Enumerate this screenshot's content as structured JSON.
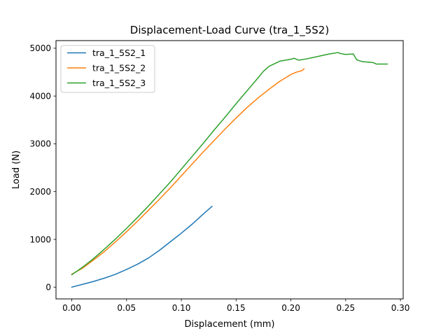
{
  "chart_data": {
    "type": "line",
    "title": "Displacement-Load Curve (tra_1_5S2)",
    "xlabel": "Displacement (mm)",
    "ylabel": "Load (N)",
    "xlim": [
      -0.0144,
      0.3025
    ],
    "ylim": [
      -246,
      5160
    ],
    "xticks": [
      0.0,
      0.05,
      0.1,
      0.15,
      0.2,
      0.25,
      0.3
    ],
    "xtick_labels": [
      "0.00",
      "0.05",
      "0.10",
      "0.15",
      "0.20",
      "0.25",
      "0.30"
    ],
    "yticks": [
      0,
      1000,
      2000,
      3000,
      4000,
      5000
    ],
    "ytick_labels": [
      "0",
      "1000",
      "2000",
      "3000",
      "4000",
      "5000"
    ],
    "grid": false,
    "legend": {
      "placement": "top-left"
    },
    "series": [
      {
        "name": "tra_1_5S2_1",
        "color": "#1f77b4",
        "points": [
          [
            0.0,
            0
          ],
          [
            0.01,
            60
          ],
          [
            0.02,
            120
          ],
          [
            0.03,
            190
          ],
          [
            0.04,
            270
          ],
          [
            0.05,
            370
          ],
          [
            0.06,
            480
          ],
          [
            0.07,
            610
          ],
          [
            0.08,
            770
          ],
          [
            0.09,
            950
          ],
          [
            0.1,
            1130
          ],
          [
            0.11,
            1320
          ],
          [
            0.12,
            1530
          ],
          [
            0.128,
            1690
          ]
        ]
      },
      {
        "name": "tra_1_5S2_2",
        "color": "#ff7f0e",
        "points": [
          [
            0.0,
            270
          ],
          [
            0.01,
            400
          ],
          [
            0.02,
            570
          ],
          [
            0.03,
            750
          ],
          [
            0.04,
            950
          ],
          [
            0.05,
            1160
          ],
          [
            0.06,
            1380
          ],
          [
            0.07,
            1610
          ],
          [
            0.08,
            1840
          ],
          [
            0.09,
            2080
          ],
          [
            0.1,
            2330
          ],
          [
            0.11,
            2580
          ],
          [
            0.12,
            2830
          ],
          [
            0.13,
            3070
          ],
          [
            0.14,
            3310
          ],
          [
            0.15,
            3540
          ],
          [
            0.16,
            3760
          ],
          [
            0.17,
            3960
          ],
          [
            0.18,
            4140
          ],
          [
            0.19,
            4310
          ],
          [
            0.2,
            4450
          ],
          [
            0.205,
            4500
          ],
          [
            0.21,
            4530
          ],
          [
            0.212,
            4570
          ]
        ]
      },
      {
        "name": "tra_1_5S2_3",
        "color": "#2ca02c",
        "points": [
          [
            0.0,
            260
          ],
          [
            0.01,
            420
          ],
          [
            0.02,
            600
          ],
          [
            0.03,
            800
          ],
          [
            0.04,
            1010
          ],
          [
            0.05,
            1230
          ],
          [
            0.06,
            1460
          ],
          [
            0.07,
            1700
          ],
          [
            0.08,
            1950
          ],
          [
            0.09,
            2200
          ],
          [
            0.1,
            2470
          ],
          [
            0.11,
            2740
          ],
          [
            0.12,
            3010
          ],
          [
            0.13,
            3290
          ],
          [
            0.14,
            3560
          ],
          [
            0.15,
            3840
          ],
          [
            0.16,
            4110
          ],
          [
            0.17,
            4380
          ],
          [
            0.175,
            4520
          ],
          [
            0.18,
            4620
          ],
          [
            0.19,
            4730
          ],
          [
            0.2,
            4770
          ],
          [
            0.203,
            4790
          ],
          [
            0.207,
            4750
          ],
          [
            0.215,
            4780
          ],
          [
            0.225,
            4830
          ],
          [
            0.235,
            4880
          ],
          [
            0.243,
            4910
          ],
          [
            0.245,
            4890
          ],
          [
            0.25,
            4870
          ],
          [
            0.257,
            4880
          ],
          [
            0.26,
            4760
          ],
          [
            0.265,
            4720
          ],
          [
            0.275,
            4700
          ],
          [
            0.278,
            4670
          ],
          [
            0.288,
            4670
          ]
        ]
      }
    ]
  }
}
